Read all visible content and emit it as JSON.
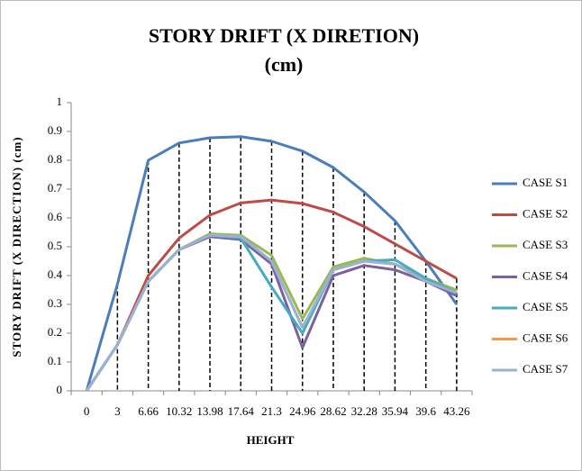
{
  "chart_data": {
    "type": "line",
    "title": "STORY DRIFT (X DIRETION)",
    "subtitle": "(cm)",
    "x_label": "HEIGHT",
    "y_label": "STORY DRIFT  (X DIRECTION) (cm)",
    "categories": [
      "0",
      "3",
      "6.66",
      "10.32",
      "13.98",
      "17.64",
      "21.3",
      "24.96",
      "28.62",
      "32.28",
      "35.94",
      "39.6",
      "43.26"
    ],
    "ylim": [
      0,
      1
    ],
    "yticks": [
      0,
      0.1,
      0.2,
      0.3,
      0.4,
      0.5,
      0.6,
      0.7,
      0.8,
      0.9,
      1
    ],
    "grid": false,
    "drop_lines": true,
    "legend": "right",
    "series": [
      {
        "name": "CASE S1",
        "color": "#4a7ebb",
        "values": [
          0,
          0.37,
          0.8,
          0.86,
          0.878,
          0.882,
          0.866,
          0.832,
          0.775,
          0.69,
          0.59,
          0.45,
          0.3
        ]
      },
      {
        "name": "CASE S2",
        "color": "#be4b48",
        "values": [
          0,
          0.16,
          0.4,
          0.53,
          0.61,
          0.652,
          0.662,
          0.65,
          0.62,
          0.57,
          0.51,
          0.45,
          0.39
        ]
      },
      {
        "name": "CASE S3",
        "color": "#98b954",
        "values": [
          0,
          0.16,
          0.38,
          0.49,
          0.545,
          0.54,
          0.47,
          0.25,
          0.43,
          0.46,
          0.44,
          0.39,
          0.35
        ]
      },
      {
        "name": "CASE S4",
        "color": "#7d60a0",
        "values": [
          0,
          0.16,
          0.38,
          0.49,
          0.535,
          0.525,
          0.44,
          0.15,
          0.4,
          0.435,
          0.42,
          0.38,
          0.33
        ]
      },
      {
        "name": "CASE S5",
        "color": "#46aac5",
        "values": [
          0,
          0.16,
          0.38,
          0.49,
          0.54,
          0.53,
          0.36,
          0.2,
          0.42,
          0.45,
          0.455,
          0.39,
          0.34
        ]
      },
      {
        "name": "CASE S6",
        "color": "#f79646",
        "values": [
          0,
          0.16,
          0.38,
          0.49,
          0.54,
          0.535,
          0.45,
          0.22,
          0.42,
          0.45,
          0.44,
          0.38,
          0.34
        ]
      },
      {
        "name": "CASE S7",
        "color": "#95b3d7",
        "values": [
          0,
          0.16,
          0.38,
          0.49,
          0.54,
          0.535,
          0.45,
          0.22,
          0.42,
          0.45,
          0.44,
          0.38,
          0.34
        ]
      }
    ]
  }
}
